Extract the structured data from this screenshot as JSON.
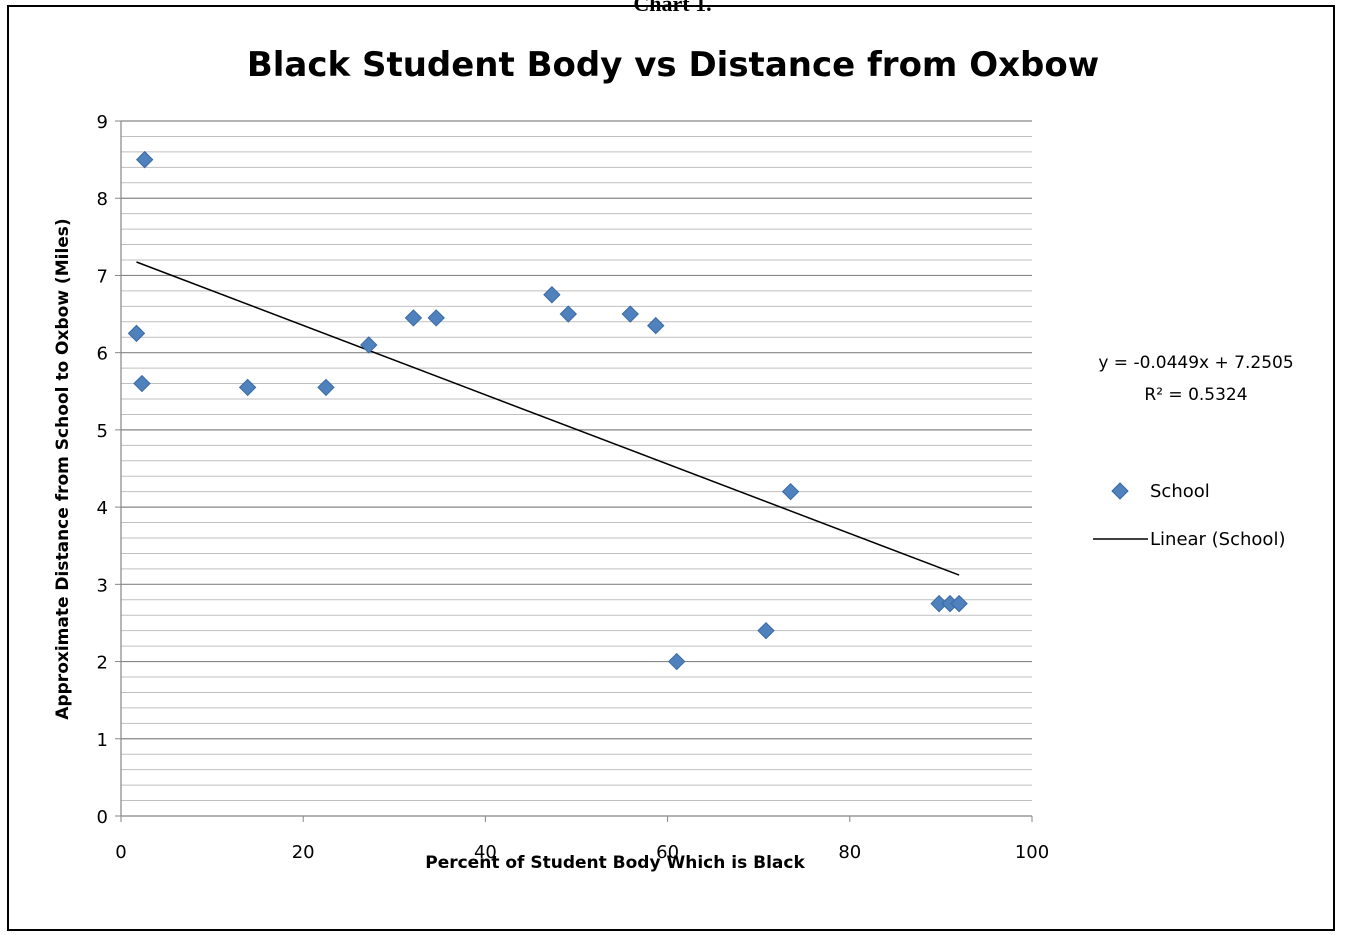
{
  "caption": "Chart 1.",
  "chart_data": {
    "type": "scatter",
    "title": "Black Student Body vs Distance from Oxbow",
    "xlabel": "Percent of Student Body Which is Black",
    "ylabel": "Approximate Distance from School to Oxbow (Miles)",
    "xlim": [
      0,
      100
    ],
    "ylim": [
      0,
      9
    ],
    "x_ticks": [
      0,
      20,
      40,
      60,
      80,
      100
    ],
    "y_ticks": [
      0,
      1,
      2,
      3,
      4,
      5,
      6,
      7,
      8,
      9
    ],
    "grid": "horizontal major and minor",
    "legend_position": "right",
    "marker_color": "#4f81bd",
    "trendline_color": "#000000",
    "series": [
      {
        "name": "School",
        "points": [
          {
            "x": 1.7,
            "y": 6.25
          },
          {
            "x": 2.3,
            "y": 5.6
          },
          {
            "x": 2.6,
            "y": 8.5
          },
          {
            "x": 13.9,
            "y": 5.55
          },
          {
            "x": 22.5,
            "y": 5.55
          },
          {
            "x": 27.2,
            "y": 6.1
          },
          {
            "x": 32.1,
            "y": 6.45
          },
          {
            "x": 34.6,
            "y": 6.45
          },
          {
            "x": 47.3,
            "y": 6.75
          },
          {
            "x": 49.1,
            "y": 6.5
          },
          {
            "x": 55.9,
            "y": 6.5
          },
          {
            "x": 58.7,
            "y": 6.35
          },
          {
            "x": 61.0,
            "y": 2.0
          },
          {
            "x": 70.8,
            "y": 2.4
          },
          {
            "x": 73.5,
            "y": 4.2
          },
          {
            "x": 89.8,
            "y": 2.75
          },
          {
            "x": 91.0,
            "y": 2.75
          },
          {
            "x": 92.0,
            "y": 2.75
          }
        ]
      }
    ],
    "trendline": {
      "name": "Linear (School)",
      "slope": -0.0449,
      "intercept": 7.2505,
      "x_range": [
        1.7,
        92.0
      ],
      "equation": "y = -0.0449x + 7.2505",
      "r_squared": "R² = 0.5324"
    }
  }
}
